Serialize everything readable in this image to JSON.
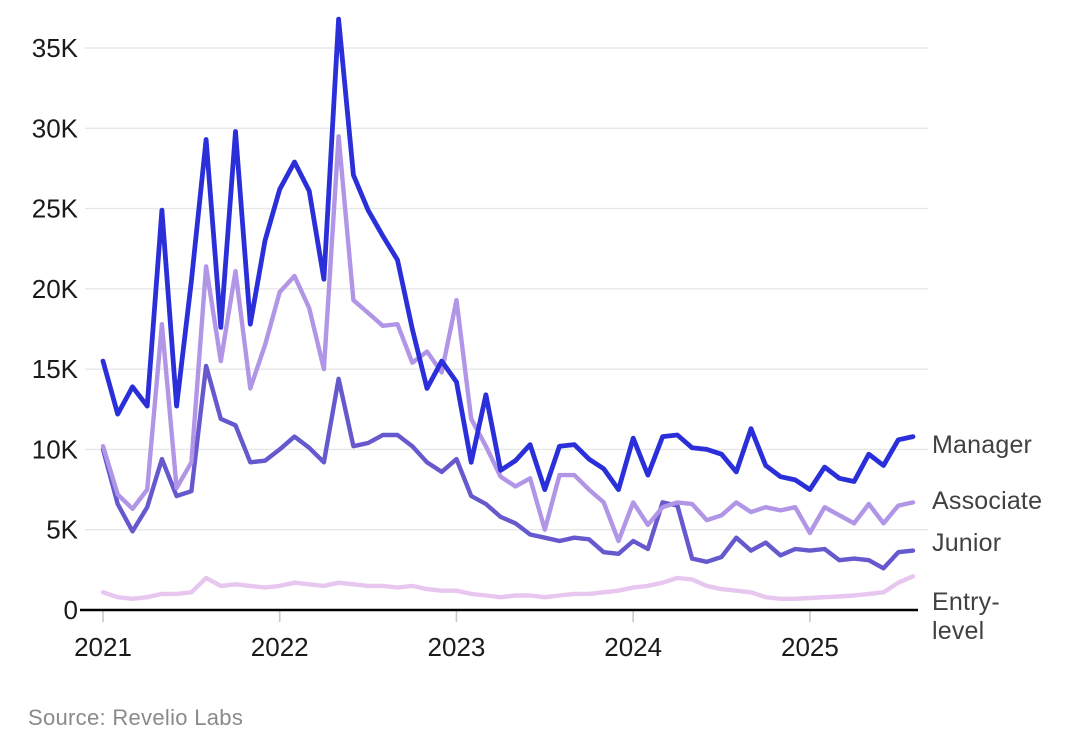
{
  "source_note": "Source: Revelio Labs",
  "chart_data": {
    "type": "line",
    "title": "",
    "xlabel": "",
    "ylabel": "",
    "x_unit": "month",
    "x_start": "2021-01",
    "x_end": "2025-08",
    "x_tick_labels": [
      "2021",
      "2022",
      "2023",
      "2024",
      "2025"
    ],
    "x_tick_month_index": [
      0,
      12,
      24,
      36,
      48
    ],
    "y_ticks": [
      0,
      5,
      10,
      15,
      20,
      25,
      30,
      35
    ],
    "y_tick_labels": [
      "0",
      "5K",
      "10K",
      "15K",
      "20K",
      "25K",
      "30K",
      "35K"
    ],
    "y_values_unit": "thousands",
    "ylim": [
      0,
      37.5
    ],
    "grid": "horizontal",
    "legend_position": "right-inline",
    "style": {
      "grid_color": "#e7e7e7",
      "axis_color": "#000000",
      "tick_color": "#c9c9c9",
      "axis_label_color": "#1a1a1a",
      "series_label_color": "#414141",
      "source_color": "#8a8a8a",
      "background": "#ffffff"
    },
    "series": [
      {
        "name": "Manager",
        "color": "#2b2fd9",
        "values": [
          15.5,
          12.2,
          13.9,
          12.7,
          24.9,
          12.7,
          20.5,
          29.3,
          17.6,
          29.8,
          17.8,
          23.0,
          26.2,
          27.9,
          26.1,
          20.6,
          36.8,
          27.1,
          24.9,
          23.3,
          21.8,
          17.5,
          13.8,
          15.5,
          14.2,
          9.2,
          13.4,
          8.7,
          9.3,
          10.3,
          7.5,
          10.2,
          10.3,
          9.4,
          8.8,
          7.5,
          10.7,
          8.4,
          10.8,
          10.9,
          10.1,
          10.0,
          9.7,
          8.6,
          11.3,
          9.0,
          8.3,
          8.1,
          7.5,
          8.9,
          8.2,
          8.0,
          9.7,
          9.0,
          10.6,
          10.8
        ]
      },
      {
        "name": "Associate",
        "color": "#b195e6",
        "values": [
          10.2,
          7.2,
          6.3,
          7.5,
          17.8,
          7.6,
          9.2,
          21.4,
          15.5,
          21.1,
          13.8,
          16.5,
          19.8,
          20.8,
          18.8,
          15.0,
          29.5,
          19.3,
          18.5,
          17.7,
          17.8,
          15.4,
          16.1,
          14.8,
          19.3,
          11.9,
          10.2,
          8.3,
          7.7,
          8.2,
          5.0,
          8.4,
          8.4,
          7.5,
          6.7,
          4.3,
          6.7,
          5.3,
          6.4,
          6.7,
          6.6,
          5.6,
          5.9,
          6.7,
          6.1,
          6.4,
          6.2,
          6.4,
          4.8,
          6.4,
          5.9,
          5.4,
          6.6,
          5.4,
          6.5,
          6.7
        ]
      },
      {
        "name": "Junior",
        "color": "#6659ce",
        "values": [
          10.0,
          6.6,
          4.9,
          6.4,
          9.4,
          7.1,
          7.4,
          15.2,
          11.9,
          11.5,
          9.2,
          9.3,
          10.0,
          10.8,
          10.1,
          9.2,
          14.4,
          10.2,
          10.4,
          10.9,
          10.9,
          10.2,
          9.2,
          8.6,
          9.4,
          7.1,
          6.6,
          5.8,
          5.4,
          4.7,
          4.5,
          4.3,
          4.5,
          4.4,
          3.6,
          3.5,
          4.3,
          3.8,
          6.7,
          6.5,
          3.2,
          3.0,
          3.3,
          4.5,
          3.7,
          4.2,
          3.4,
          3.8,
          3.7,
          3.8,
          3.1,
          3.2,
          3.1,
          2.6,
          3.6,
          3.7
        ]
      },
      {
        "name": "Entry-level",
        "color": "#e7c6f0",
        "values": [
          1.1,
          0.8,
          0.7,
          0.8,
          1.0,
          1.0,
          1.1,
          2.0,
          1.5,
          1.6,
          1.5,
          1.4,
          1.5,
          1.7,
          1.6,
          1.5,
          1.7,
          1.6,
          1.5,
          1.5,
          1.4,
          1.5,
          1.3,
          1.2,
          1.2,
          1.0,
          0.9,
          0.8,
          0.9,
          0.9,
          0.8,
          0.9,
          1.0,
          1.0,
          1.1,
          1.2,
          1.4,
          1.5,
          1.7,
          2.0,
          1.9,
          1.5,
          1.3,
          1.2,
          1.1,
          0.8,
          0.7,
          0.7,
          0.75,
          0.8,
          0.85,
          0.9,
          1.0,
          1.1,
          1.7,
          2.1
        ]
      }
    ]
  }
}
